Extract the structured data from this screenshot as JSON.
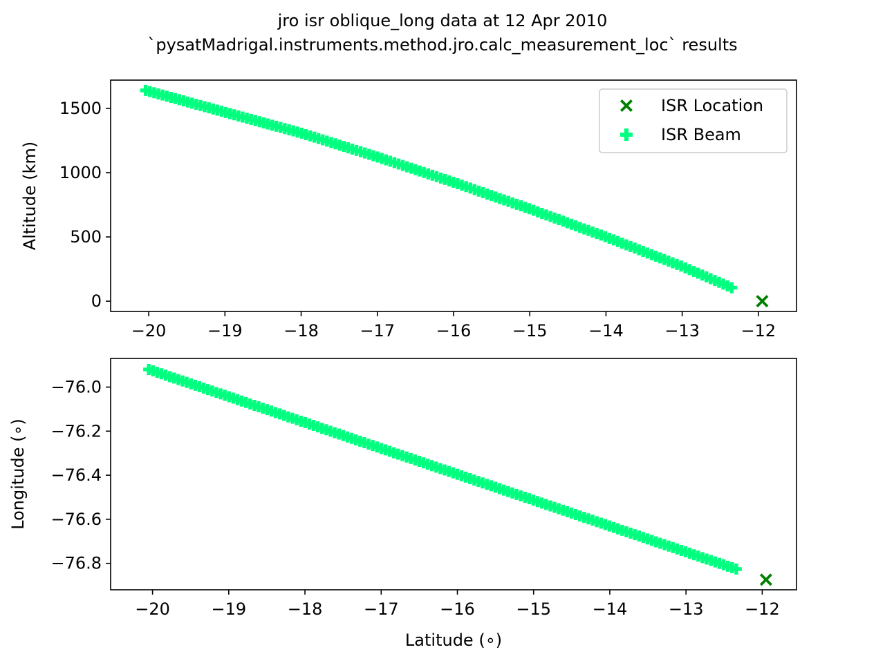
{
  "figure": {
    "title_line1": "jro isr oblique_long data at 12 Apr 2010",
    "title_line2": "`pysatMadrigal.instruments.method.jro.calc_measurement_loc` results"
  },
  "legend": {
    "location_label": "ISR Location",
    "beam_label": "ISR Beam",
    "placement": "upper right"
  },
  "colors": {
    "location": "#008000",
    "beam": "#00ff7f",
    "axes": "#000000",
    "background": "#ffffff"
  },
  "chart_data": [
    {
      "type": "scatter",
      "title": "",
      "xlabel": "",
      "ylabel": "Altitude (km)",
      "xlim": [
        -20.5,
        -11.5
      ],
      "ylim": [
        -80,
        1720
      ],
      "xticks": [
        -20,
        -19,
        -18,
        -17,
        -16,
        -15,
        -14,
        -13,
        -12
      ],
      "yticks": [
        0,
        500,
        1000,
        1500
      ],
      "xtick_labels": [
        "−20",
        "−19",
        "−18",
        "−17",
        "−16",
        "−15",
        "−14",
        "−13",
        "−12"
      ],
      "ytick_labels": [
        "0",
        "500",
        "1000",
        "1500"
      ],
      "grid": false,
      "legend": "upper right",
      "series": [
        {
          "name": "ISR Location",
          "marker": "X",
          "x": [
            -11.95
          ],
          "y": [
            0
          ]
        },
        {
          "name": "ISR Beam",
          "marker": "P",
          "x_start": -20.04,
          "x_end": -12.35,
          "y_start": 1640,
          "y_end": 105,
          "count": 140,
          "curve": [
            {
              "x": -20.04,
              "y": 1640
            },
            {
              "x": -19,
              "y": 1470
            },
            {
              "x": -18,
              "y": 1308
            },
            {
              "x": -17,
              "y": 1122
            },
            {
              "x": -16,
              "y": 925
            },
            {
              "x": -15,
              "y": 718
            },
            {
              "x": -14,
              "y": 500
            },
            {
              "x": -13,
              "y": 270
            },
            {
              "x": -12.35,
              "y": 105
            }
          ]
        }
      ]
    },
    {
      "type": "scatter",
      "title": "",
      "xlabel": "Latitude (∘)",
      "ylabel": "Longitude (∘)",
      "xlim": [
        -20.55,
        -11.55
      ],
      "ylim": [
        -76.92,
        -75.87
      ],
      "xticks": [
        -20,
        -19,
        -18,
        -17,
        -16,
        -15,
        -14,
        -13,
        -12
      ],
      "yticks": [
        -76.0,
        -76.2,
        -76.4,
        -76.6,
        -76.8
      ],
      "xtick_labels": [
        "−20",
        "−19",
        "−18",
        "−17",
        "−16",
        "−15",
        "−14",
        "−13",
        "−12"
      ],
      "ytick_labels": [
        "−76.0",
        "−76.2",
        "−76.4",
        "−76.6",
        "−76.8"
      ],
      "grid": false,
      "series": [
        {
          "name": "ISR Location",
          "marker": "X",
          "x": [
            -11.95
          ],
          "y": [
            -76.874
          ]
        },
        {
          "name": "ISR Beam",
          "marker": "P",
          "x_start": -20.05,
          "x_end": -12.34,
          "y_start": -75.92,
          "y_end": -76.826,
          "count": 140
        }
      ]
    }
  ]
}
